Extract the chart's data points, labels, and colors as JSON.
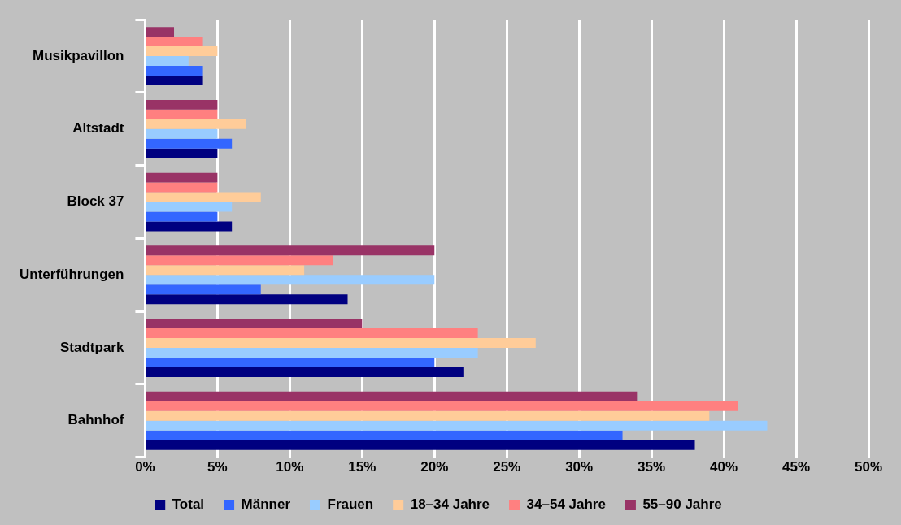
{
  "chart_data": {
    "type": "bar",
    "orientation": "horizontal",
    "categories": [
      "Musikpavillon",
      "Altstadt",
      "Block 37",
      "Unterführungen",
      "Stadtpark",
      "Bahnhof"
    ],
    "series": [
      {
        "name": "Total",
        "color": "#000080",
        "values": [
          4,
          5,
          6,
          14,
          22,
          38
        ]
      },
      {
        "name": "Männer",
        "color": "#3366ff",
        "values": [
          4,
          6,
          5,
          8,
          20,
          33
        ]
      },
      {
        "name": "Frauen",
        "color": "#99ccff",
        "values": [
          3,
          5,
          6,
          20,
          23,
          43
        ]
      },
      {
        "name": "18–34 Jahre",
        "color": "#ffcc99",
        "values": [
          5,
          7,
          8,
          11,
          27,
          39
        ]
      },
      {
        "name": "34–54 Jahre",
        "color": "#ff8080",
        "values": [
          4,
          5,
          5,
          13,
          23,
          41
        ]
      },
      {
        "name": "55–90 Jahre",
        "color": "#993366",
        "values": [
          2,
          5,
          5,
          20,
          15,
          34
        ]
      }
    ],
    "xlim": [
      0,
      50
    ],
    "xticks": [
      {
        "value": 0,
        "label": "0%"
      },
      {
        "value": 5,
        "label": "5%"
      },
      {
        "value": 10,
        "label": "10%"
      },
      {
        "value": 15,
        "label": "15%"
      },
      {
        "value": 20,
        "label": "20%"
      },
      {
        "value": 25,
        "label": "25%"
      },
      {
        "value": 30,
        "label": "30%"
      },
      {
        "value": 35,
        "label": "35%"
      },
      {
        "value": 40,
        "label": "40%"
      },
      {
        "value": 45,
        "label": "45%"
      },
      {
        "value": 50,
        "label": "50%"
      }
    ],
    "grid": "x",
    "legend": "bottom"
  }
}
